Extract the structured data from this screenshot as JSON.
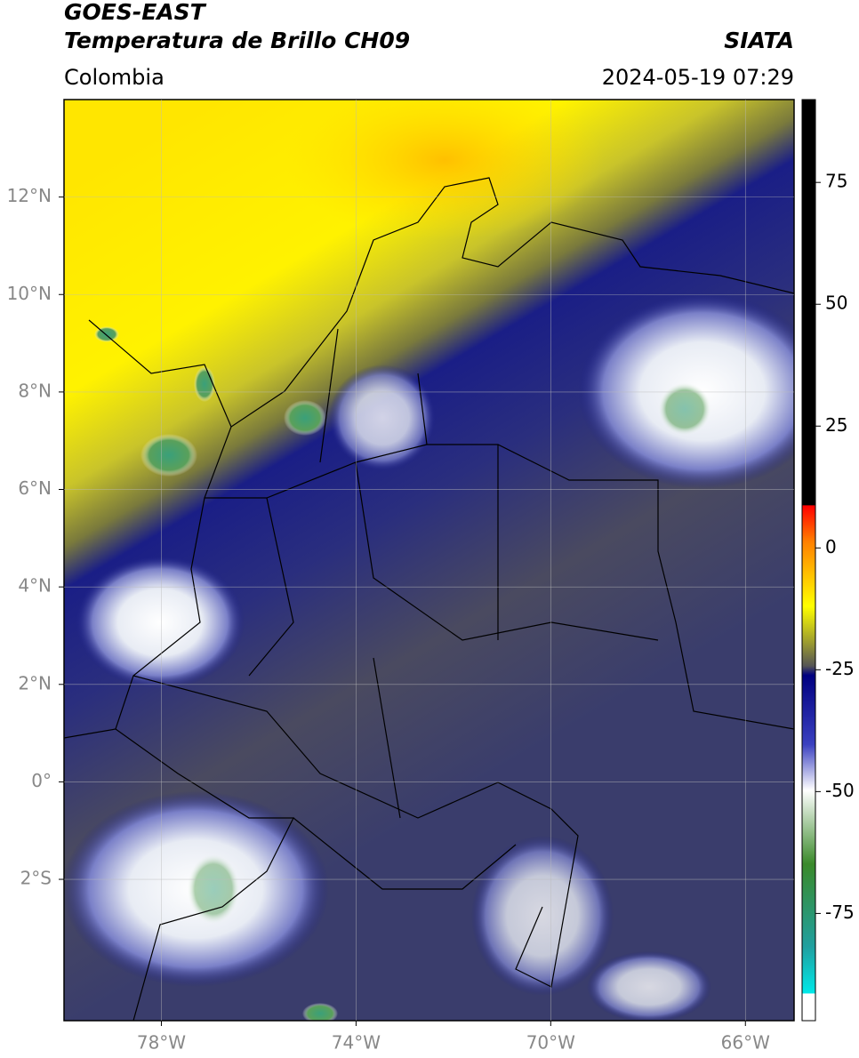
{
  "header": {
    "satellite": "GOES-EAST",
    "product": "Temperatura de Brillo CH09",
    "source": "SIATA",
    "region": "Colombia",
    "datetime": "2024-05-19 07:29"
  },
  "map": {
    "xlim": [
      -80,
      -65
    ],
    "ylim": [
      -4.9,
      14
    ],
    "grid": true,
    "xticks": [
      {
        "value": -78,
        "label": "78°W"
      },
      {
        "value": -74,
        "label": "74°W"
      },
      {
        "value": -70,
        "label": "70°W"
      },
      {
        "value": -66,
        "label": "66°W"
      }
    ],
    "yticks": [
      {
        "value": 12,
        "label": "12°N"
      },
      {
        "value": 10,
        "label": "10°N"
      },
      {
        "value": 8,
        "label": "8°N"
      },
      {
        "value": 6,
        "label": "6°N"
      },
      {
        "value": 4,
        "label": "4°N"
      },
      {
        "value": 2,
        "label": "2°N"
      },
      {
        "value": 0,
        "label": "0°"
      },
      {
        "value": -2,
        "label": "2°S"
      }
    ]
  },
  "colorbar": {
    "lim": [
      -97,
      92
    ],
    "ticks": [
      75,
      50,
      25,
      0,
      -25,
      -50,
      -75
    ]
  }
}
